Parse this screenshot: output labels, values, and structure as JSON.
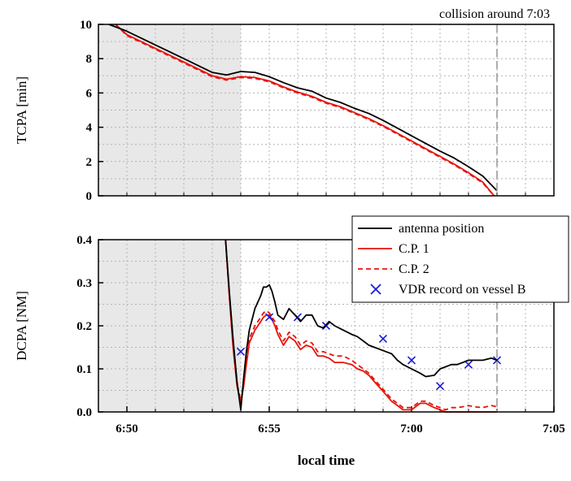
{
  "colors": {
    "shade": "#e8e8e8",
    "grid": "#b4b4b4",
    "antenna": "#000000",
    "cp": "#e8130c",
    "vdr": "#1a1ad8",
    "collision_line": "#9a9a9a"
  },
  "chart_data": [
    {
      "type": "line",
      "ylabel": "TCPA [min]",
      "xlim": [
        6.816667,
        7.083333
      ],
      "ylim": [
        0,
        10
      ],
      "yticks": [
        0,
        2,
        4,
        6,
        8,
        10
      ],
      "yticklabels": [
        "0",
        "2",
        "4",
        "6",
        "8",
        "10"
      ],
      "shaded_until": 6.9,
      "annotation": {
        "text": "collision around 7:03",
        "x": 7.05
      },
      "grid": "dotted",
      "series": [
        {
          "name": "antenna position",
          "color": "antenna",
          "style": "solid",
          "x": [
            6.8228,
            6.8333,
            6.85,
            6.8667,
            6.8833,
            6.8917,
            6.9,
            6.9083,
            6.9167,
            6.925,
            6.9333,
            6.9417,
            6.95,
            6.9583,
            6.9667,
            6.975,
            6.9833,
            6.9917,
            7.0,
            7.0083,
            7.0167,
            7.025,
            7.0333,
            7.0417,
            7.05
          ],
          "y": [
            10.0,
            9.6,
            8.8,
            8.0,
            7.2,
            7.05,
            7.25,
            7.2,
            6.95,
            6.6,
            6.3,
            6.1,
            5.7,
            5.45,
            5.1,
            4.8,
            4.4,
            3.95,
            3.5,
            3.05,
            2.6,
            2.2,
            1.7,
            1.15,
            0.3
          ]
        },
        {
          "name": "C.P. 1",
          "color": "cp",
          "style": "solid",
          "x": [
            6.8267,
            6.8333,
            6.85,
            6.8667,
            6.8833,
            6.8917,
            6.9,
            6.9083,
            6.9167,
            6.925,
            6.9333,
            6.9417,
            6.95,
            6.9583,
            6.9667,
            6.975,
            6.9833,
            6.9917,
            7.0,
            7.0083,
            7.0167,
            7.025,
            7.0333,
            7.0417,
            7.0483
          ],
          "y": [
            10.0,
            9.4,
            8.6,
            7.8,
            7.0,
            6.8,
            6.95,
            6.9,
            6.7,
            6.35,
            6.05,
            5.8,
            5.45,
            5.2,
            4.85,
            4.5,
            4.1,
            3.65,
            3.2,
            2.75,
            2.3,
            1.85,
            1.35,
            0.8,
            0.0
          ]
        },
        {
          "name": "C.P. 2",
          "color": "cp",
          "style": "dashed",
          "x": [
            6.8267,
            6.8333,
            6.85,
            6.8667,
            6.8833,
            6.8917,
            6.9,
            6.9083,
            6.9167,
            6.925,
            6.9333,
            6.9417,
            6.95,
            6.9583,
            6.9667,
            6.975,
            6.9833,
            6.9917,
            7.0,
            7.0083,
            7.0167,
            7.025,
            7.0333,
            7.0417,
            7.0483
          ],
          "y": [
            10.0,
            9.35,
            8.55,
            7.75,
            6.95,
            6.75,
            6.9,
            6.85,
            6.65,
            6.3,
            6.0,
            5.75,
            5.4,
            5.15,
            4.8,
            4.45,
            4.05,
            3.6,
            3.15,
            2.7,
            2.25,
            1.8,
            1.3,
            0.75,
            0.0
          ]
        }
      ]
    },
    {
      "type": "line",
      "ylabel": "DCPA [NM]",
      "xlabel": "local time",
      "xlim": [
        6.816667,
        7.083333
      ],
      "ylim": [
        0,
        0.4
      ],
      "yticks": [
        0,
        0.1,
        0.2,
        0.3,
        0.4
      ],
      "yticklabels": [
        "0.0",
        "0.1",
        "0.2",
        "0.3",
        "0.4"
      ],
      "xticks": [
        6.833333,
        6.916667,
        7.0,
        7.083333
      ],
      "xticklabels": [
        "6:50",
        "6:55",
        "7:00",
        "7:05"
      ],
      "shaded_until": 6.9,
      "grid": "dotted",
      "legend": "top-right",
      "series": [
        {
          "name": "antenna position",
          "color": "antenna",
          "style": "solid",
          "x": [
            6.8911,
            6.8933,
            6.8955,
            6.8978,
            6.9,
            6.9017,
            6.9033,
            6.905,
            6.9083,
            6.9117,
            6.9133,
            6.915,
            6.9167,
            6.9183,
            6.92,
            6.9217,
            6.925,
            6.9283,
            6.9317,
            6.935,
            6.9383,
            6.9417,
            6.945,
            6.9483,
            6.9517,
            6.955,
            6.96,
            6.965,
            6.9683,
            6.9717,
            6.975,
            6.9783,
            6.9817,
            6.985,
            6.9883,
            6.9917,
            6.995,
            7.0,
            7.005,
            7.0083,
            7.0133,
            7.0167,
            7.02,
            7.0233,
            7.0267,
            7.03,
            7.0333,
            7.0367,
            7.0417,
            7.0467,
            7.05
          ],
          "y": [
            0.4,
            0.28,
            0.17,
            0.07,
            0.005,
            0.08,
            0.14,
            0.19,
            0.24,
            0.27,
            0.29,
            0.29,
            0.295,
            0.28,
            0.255,
            0.225,
            0.215,
            0.24,
            0.225,
            0.21,
            0.225,
            0.225,
            0.2,
            0.195,
            0.21,
            0.2,
            0.19,
            0.18,
            0.175,
            0.165,
            0.155,
            0.15,
            0.145,
            0.14,
            0.135,
            0.12,
            0.11,
            0.1,
            0.09,
            0.082,
            0.085,
            0.1,
            0.105,
            0.11,
            0.11,
            0.115,
            0.12,
            0.12,
            0.12,
            0.125,
            0.12
          ]
        },
        {
          "name": "C.P. 1",
          "color": "cp",
          "style": "solid",
          "x": [
            6.8911,
            6.8933,
            6.8955,
            6.8978,
            6.9,
            6.9017,
            6.9033,
            6.905,
            6.9083,
            6.9117,
            6.9133,
            6.915,
            6.9167,
            6.9183,
            6.92,
            6.9217,
            6.925,
            6.9283,
            6.9317,
            6.935,
            6.9383,
            6.9417,
            6.945,
            6.9483,
            6.9517,
            6.955,
            6.96,
            6.965,
            6.9683,
            6.9717,
            6.975,
            6.9783,
            6.9817,
            6.985,
            6.9883,
            6.9917,
            6.995,
            7.0,
            7.005,
            7.0083,
            7.0133,
            7.0167,
            7.02,
            7.0233,
            7.0267,
            7.03,
            7.0333,
            7.0367,
            7.0417,
            7.0467,
            7.05
          ],
          "y": [
            0.4,
            0.27,
            0.15,
            0.06,
            0.02,
            0.06,
            0.11,
            0.16,
            0.19,
            0.21,
            0.22,
            0.225,
            0.225,
            0.215,
            0.2,
            0.18,
            0.155,
            0.175,
            0.165,
            0.145,
            0.155,
            0.15,
            0.13,
            0.13,
            0.125,
            0.115,
            0.115,
            0.11,
            0.1,
            0.095,
            0.085,
            0.07,
            0.055,
            0.04,
            0.025,
            0.015,
            0.005,
            0.005,
            0.02,
            0.02,
            0.01,
            0.005,
            0.0,
            0.0,
            0.0,
            0.0,
            0.0,
            0.0,
            0.0,
            0.0,
            0.0
          ]
        },
        {
          "name": "C.P. 2",
          "color": "cp",
          "style": "dashed",
          "x": [
            6.8911,
            6.8933,
            6.8955,
            6.8978,
            6.9,
            6.9017,
            6.9033,
            6.905,
            6.9083,
            6.9117,
            6.9133,
            6.915,
            6.9167,
            6.9183,
            6.92,
            6.9217,
            6.925,
            6.9283,
            6.9317,
            6.935,
            6.9383,
            6.9417,
            6.945,
            6.9483,
            6.9517,
            6.955,
            6.96,
            6.965,
            6.9683,
            6.9717,
            6.975,
            6.9783,
            6.9817,
            6.985,
            6.9883,
            6.9917,
            6.995,
            7.0,
            7.005,
            7.0083,
            7.0133,
            7.0167,
            7.02,
            7.0233,
            7.0267,
            7.03,
            7.0333,
            7.0367,
            7.0417,
            7.0467,
            7.05
          ],
          "y": [
            0.4,
            0.27,
            0.16,
            0.065,
            0.025,
            0.07,
            0.12,
            0.17,
            0.2,
            0.22,
            0.23,
            0.235,
            0.23,
            0.22,
            0.21,
            0.19,
            0.165,
            0.185,
            0.175,
            0.155,
            0.165,
            0.16,
            0.14,
            0.14,
            0.135,
            0.13,
            0.13,
            0.12,
            0.11,
            0.1,
            0.09,
            0.075,
            0.06,
            0.045,
            0.03,
            0.02,
            0.01,
            0.01,
            0.025,
            0.025,
            0.015,
            0.01,
            0.005,
            0.01,
            0.01,
            0.012,
            0.015,
            0.012,
            0.01,
            0.015,
            0.012
          ]
        },
        {
          "name": "VDR record on vessel B",
          "color": "vdr",
          "style": "marker",
          "x": [
            6.9,
            6.9167,
            6.9333,
            6.95,
            6.9833,
            7.0,
            7.0167,
            7.0333,
            7.05
          ],
          "y": [
            0.14,
            0.22,
            0.22,
            0.2,
            0.17,
            0.12,
            0.06,
            0.11,
            0.12
          ]
        }
      ]
    }
  ]
}
